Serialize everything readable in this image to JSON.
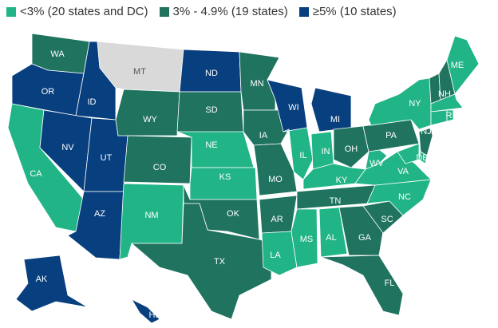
{
  "legend": [
    {
      "label": "<3% (20 states and DC)",
      "color": "#21b487"
    },
    {
      "label": "3% - 4.9% (19 states)",
      "color": "#1f735f"
    },
    {
      "label": "≥5% (10 states)",
      "color": "#083f7e"
    }
  ],
  "states": [
    {
      "label": "WA",
      "color": "#1f735f"
    },
    {
      "label": "OR",
      "color": "#083f7e"
    },
    {
      "label": "CA",
      "color": "#21b487"
    },
    {
      "label": "ID",
      "color": "#083f7e"
    },
    {
      "label": "NV",
      "color": "#083f7e"
    },
    {
      "label": "UT",
      "color": "#083f7e"
    },
    {
      "label": "AZ",
      "color": "#083f7e"
    },
    {
      "label": "MT",
      "color": "#d9d9d9"
    },
    {
      "label": "WY",
      "color": "#1f735f"
    },
    {
      "label": "CO",
      "color": "#1f735f"
    },
    {
      "label": "NM",
      "color": "#21b487"
    },
    {
      "label": "ND",
      "color": "#083f7e"
    },
    {
      "label": "SD",
      "color": "#1f735f"
    },
    {
      "label": "NE",
      "color": "#21b487"
    },
    {
      "label": "KS",
      "color": "#21b487"
    },
    {
      "label": "OK",
      "color": "#1f735f"
    },
    {
      "label": "TX",
      "color": "#1f735f"
    },
    {
      "label": "MN",
      "color": "#1f735f"
    },
    {
      "label": "IA",
      "color": "#1f735f"
    },
    {
      "label": "MO",
      "color": "#1f735f"
    },
    {
      "label": "AR",
      "color": "#1f735f"
    },
    {
      "label": "LA",
      "color": "#21b487"
    },
    {
      "label": "WI",
      "color": "#083f7e"
    },
    {
      "label": "IL",
      "color": "#21b487"
    },
    {
      "label": "MI",
      "color": "#083f7e"
    },
    {
      "label": "IN",
      "color": "#21b487"
    },
    {
      "label": "OH",
      "color": "#1f735f"
    },
    {
      "label": "KY",
      "color": "#21b487"
    },
    {
      "label": "TN",
      "color": "#1f735f"
    },
    {
      "label": "MS",
      "color": "#21b487"
    },
    {
      "label": "AL",
      "color": "#21b487"
    },
    {
      "label": "GA",
      "color": "#1f735f"
    },
    {
      "label": "FL",
      "color": "#1f735f"
    },
    {
      "label": "SC",
      "color": "#1f735f"
    },
    {
      "label": "NC",
      "color": "#21b487"
    },
    {
      "label": "VA",
      "color": "#21b487"
    },
    {
      "label": "WV",
      "color": "#21b487"
    },
    {
      "label": "PA",
      "color": "#1f735f"
    },
    {
      "label": "NY",
      "color": "#21b487"
    },
    {
      "label": "NJ",
      "color": "#1f735f"
    },
    {
      "label": "DE",
      "color": "#21b487"
    },
    {
      "label": null,
      "color": "#21b487"
    },
    {
      "label": null,
      "color": "#1f735f"
    },
    {
      "label": "NH",
      "color": "#1f735f"
    },
    {
      "label": "ME",
      "color": "#21b487"
    },
    {
      "label": null,
      "color": "#21b487"
    },
    {
      "label": null,
      "color": "#21b487"
    },
    {
      "label": "RI",
      "color": "#21b487"
    },
    {
      "label": "AK",
      "color": "#083f7e"
    },
    {
      "label": "HI",
      "color": "#083f7e"
    }
  ]
}
